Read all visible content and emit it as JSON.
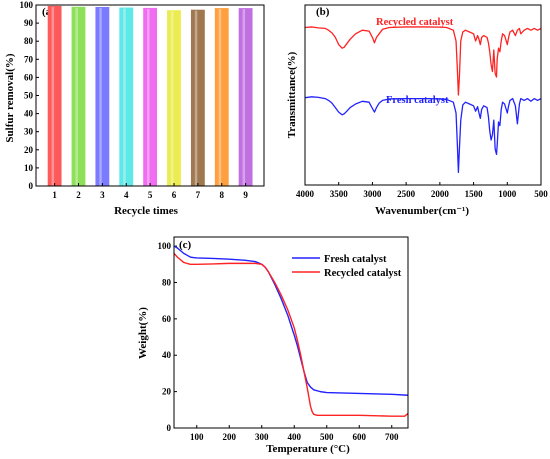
{
  "chart_data": [
    {
      "id": "a",
      "panel_label": "(a)",
      "type": "bar",
      "xlabel": "Recycle times",
      "ylabel": "Sulfur removal(%)",
      "categories": [
        "1",
        "2",
        "3",
        "4",
        "5",
        "6",
        "7",
        "8",
        "9"
      ],
      "values": [
        99.5,
        99.0,
        98.9,
        98.6,
        98.4,
        97.1,
        97.4,
        98.3,
        98.3
      ],
      "colors": [
        "#ff5a5a",
        "#8ee05a",
        "#7b7bff",
        "#5fe8e8",
        "#f06cf0",
        "#ecec50",
        "#a07850",
        "#ffa040",
        "#c070e0"
      ],
      "ylim": [
        0,
        100
      ],
      "yticks": [
        0,
        10,
        20,
        30,
        40,
        50,
        60,
        70,
        80,
        90,
        100
      ],
      "ytick_labels": [
        "0",
        "10",
        "20",
        "30",
        "40",
        "50",
        "60",
        "70",
        "80",
        "90",
        "100"
      ]
    },
    {
      "id": "b",
      "panel_label": "(b)",
      "type": "line",
      "xlabel": "Wavenumber(cm⁻¹)",
      "ylabel": "Transmittance(%)",
      "xlim": [
        4000,
        500
      ],
      "xticks": [
        4000,
        3500,
        3000,
        2500,
        2000,
        1500,
        1000,
        500
      ],
      "xtick_labels": [
        "4000",
        "3500",
        "3000",
        "2500",
        "2000",
        "1500",
        "1000",
        "500"
      ],
      "ylim": [
        0,
        1
      ],
      "series": [
        {
          "name": "Recycled catalyst",
          "color": "#ff2222",
          "x": [
            4000,
            3900,
            3800,
            3700,
            3650,
            3600,
            3550,
            3500,
            3450,
            3420,
            3380,
            3330,
            3250,
            3150,
            3050,
            3000,
            2970,
            2940,
            2900,
            2850,
            2750,
            2500,
            2200,
            2000,
            1900,
            1800,
            1760,
            1740,
            1725,
            1710,
            1690,
            1660,
            1620,
            1560,
            1500,
            1470,
            1440,
            1420,
            1400,
            1380,
            1350,
            1300,
            1280,
            1260,
            1240,
            1220,
            1200,
            1180,
            1160,
            1150,
            1130,
            1110,
            1090,
            1070,
            1040,
            1000,
            980,
            960,
            920,
            880,
            850,
            820,
            800,
            750,
            700,
            650,
            600,
            550,
            500
          ],
          "y": [
            0.875,
            0.878,
            0.873,
            0.87,
            0.86,
            0.845,
            0.82,
            0.78,
            0.76,
            0.765,
            0.785,
            0.81,
            0.84,
            0.86,
            0.855,
            0.82,
            0.79,
            0.82,
            0.84,
            0.865,
            0.875,
            0.878,
            0.878,
            0.877,
            0.875,
            0.86,
            0.8,
            0.64,
            0.5,
            0.6,
            0.8,
            0.85,
            0.86,
            0.85,
            0.84,
            0.8,
            0.83,
            0.81,
            0.78,
            0.82,
            0.83,
            0.82,
            0.79,
            0.74,
            0.67,
            0.63,
            0.75,
            0.62,
            0.6,
            0.7,
            0.76,
            0.74,
            0.8,
            0.84,
            0.83,
            0.78,
            0.82,
            0.85,
            0.86,
            0.83,
            0.86,
            0.87,
            0.84,
            0.86,
            0.87,
            0.86,
            0.87,
            0.86,
            0.87
          ]
        },
        {
          "name": "Fresh  catalyst",
          "color": "#2222ff",
          "x": [
            4000,
            3900,
            3800,
            3700,
            3650,
            3600,
            3550,
            3500,
            3450,
            3420,
            3380,
            3330,
            3250,
            3150,
            3050,
            3000,
            2970,
            2940,
            2900,
            2850,
            2750,
            2500,
            2200,
            2000,
            1900,
            1800,
            1760,
            1740,
            1725,
            1710,
            1690,
            1660,
            1620,
            1560,
            1500,
            1470,
            1440,
            1420,
            1400,
            1380,
            1350,
            1300,
            1280,
            1260,
            1240,
            1220,
            1200,
            1180,
            1160,
            1150,
            1130,
            1110,
            1090,
            1070,
            1040,
            1000,
            980,
            960,
            920,
            880,
            850,
            820,
            800,
            750,
            700,
            650,
            600,
            550,
            500
          ],
          "y": [
            0.485,
            0.49,
            0.487,
            0.48,
            0.47,
            0.455,
            0.43,
            0.405,
            0.39,
            0.395,
            0.41,
            0.43,
            0.45,
            0.465,
            0.46,
            0.425,
            0.405,
            0.43,
            0.455,
            0.47,
            0.478,
            0.48,
            0.48,
            0.478,
            0.475,
            0.46,
            0.4,
            0.22,
            0.07,
            0.2,
            0.36,
            0.445,
            0.46,
            0.45,
            0.44,
            0.41,
            0.435,
            0.4,
            0.37,
            0.42,
            0.44,
            0.43,
            0.38,
            0.3,
            0.25,
            0.28,
            0.36,
            0.2,
            0.17,
            0.22,
            0.35,
            0.33,
            0.42,
            0.46,
            0.45,
            0.4,
            0.44,
            0.47,
            0.48,
            0.44,
            0.34,
            0.45,
            0.48,
            0.47,
            0.48,
            0.465,
            0.48,
            0.47,
            0.48
          ]
        }
      ]
    },
    {
      "id": "c",
      "panel_label": "(c)",
      "type": "line",
      "xlabel": "Temperature (°C)",
      "ylabel": "Weight(%)",
      "xlim": [
        30,
        750
      ],
      "ylim": [
        0,
        105
      ],
      "xticks": [
        100,
        200,
        300,
        400,
        500,
        600,
        700
      ],
      "xtick_labels": [
        "100",
        "200",
        "300",
        "400",
        "500",
        "600",
        "700"
      ],
      "yticks": [
        0,
        20,
        40,
        60,
        80,
        100
      ],
      "ytick_labels": [
        "0",
        "20",
        "40",
        "60",
        "80",
        "100"
      ],
      "legend_position": "top-right",
      "series": [
        {
          "name": "Fresh  catalyst",
          "color": "#2222ff",
          "x": [
            30,
            40,
            50,
            60,
            70,
            80,
            90,
            100,
            150,
            200,
            250,
            280,
            300,
            310,
            320,
            340,
            360,
            380,
            400,
            410,
            420,
            430,
            440,
            450,
            460,
            480,
            500,
            600,
            700,
            750
          ],
          "y": [
            100,
            99,
            97.5,
            96,
            95,
            94,
            93.7,
            93.5,
            93.2,
            92.8,
            92.2,
            91.5,
            90,
            88.5,
            86,
            79,
            71,
            62,
            51,
            45,
            38,
            31,
            25,
            22.5,
            21,
            20,
            19.5,
            19,
            18.5,
            18
          ]
        },
        {
          "name": "Recycled catalyst",
          "color": "#ff2222",
          "x": [
            30,
            40,
            50,
            60,
            70,
            80,
            90,
            100,
            150,
            200,
            250,
            280,
            300,
            310,
            320,
            340,
            360,
            380,
            400,
            410,
            420,
            430,
            440,
            445,
            450,
            455,
            460,
            470,
            500,
            600,
            700,
            740,
            750
          ],
          "y": [
            96,
            94,
            92.5,
            91,
            90.5,
            90,
            90,
            90,
            90.2,
            90.5,
            90.5,
            90.5,
            90,
            88.5,
            86,
            80,
            73,
            65,
            55,
            48,
            40,
            31,
            22,
            17,
            12,
            9,
            7.5,
            7,
            7,
            7,
            6.5,
            6.5,
            8
          ]
        }
      ]
    }
  ]
}
